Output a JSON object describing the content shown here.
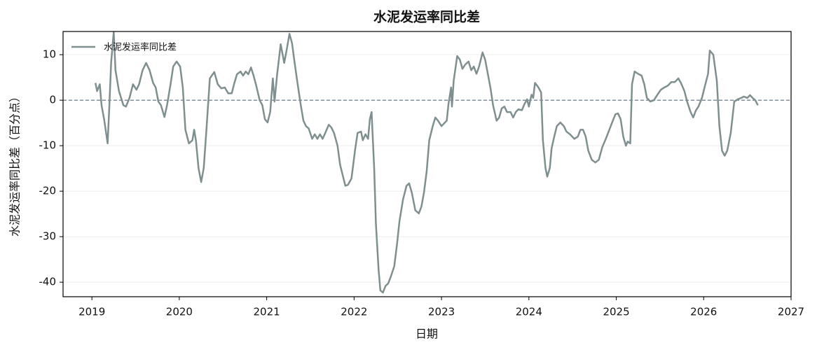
{
  "chart_data": {
    "type": "line",
    "title": "水泥发运率同比差",
    "x_label": "日期",
    "y_label": "水泥发运率同比差（百分点）",
    "x": [
      2019.04,
      2019.06,
      2019.09,
      2019.11,
      2019.14,
      2019.18,
      2019.2,
      2019.22,
      2019.25,
      2019.27,
      2019.31,
      2019.36,
      2019.39,
      2019.43,
      2019.47,
      2019.51,
      2019.54,
      2019.58,
      2019.62,
      2019.66,
      2019.7,
      2019.73,
      2019.76,
      2019.79,
      2019.83,
      2019.86,
      2019.9,
      2019.93,
      2019.97,
      2020.01,
      2020.04,
      2020.07,
      2020.11,
      2020.15,
      2020.17,
      2020.19,
      2020.22,
      2020.25,
      2020.28,
      2020.31,
      2020.35,
      2020.4,
      2020.44,
      2020.48,
      2020.52,
      2020.56,
      2020.6,
      2020.63,
      2020.66,
      2020.7,
      2020.73,
      2020.76,
      2020.79,
      2020.82,
      2020.85,
      2020.88,
      2020.92,
      2020.95,
      2020.98,
      2021.01,
      2021.04,
      2021.07,
      2021.09,
      2021.12,
      2021.16,
      2021.2,
      2021.23,
      2021.26,
      2021.29,
      2021.32,
      2021.36,
      2021.39,
      2021.42,
      2021.45,
      2021.48,
      2021.52,
      2021.55,
      2021.58,
      2021.61,
      2021.64,
      2021.67,
      2021.71,
      2021.74,
      2021.77,
      2021.81,
      2021.84,
      2021.87,
      2021.9,
      2021.93,
      2021.97,
      2021.99,
      2022.01,
      2022.04,
      2022.08,
      2022.1,
      2022.13,
      2022.16,
      2022.18,
      2022.2,
      2022.23,
      2022.25,
      2022.28,
      2022.3,
      2022.33,
      2022.36,
      2022.39,
      2022.42,
      2022.46,
      2022.49,
      2022.52,
      2022.56,
      2022.6,
      2022.63,
      2022.66,
      2022.7,
      2022.74,
      2022.77,
      2022.8,
      2022.83,
      2022.86,
      2022.9,
      2022.93,
      2022.96,
      2023.0,
      2023.03,
      2023.06,
      2023.08,
      2023.11,
      2023.12,
      2023.14,
      2023.18,
      2023.21,
      2023.24,
      2023.27,
      2023.31,
      2023.34,
      2023.37,
      2023.4,
      2023.43,
      2023.47,
      2023.5,
      2023.53,
      2023.56,
      2023.59,
      2023.63,
      2023.66,
      2023.69,
      2023.72,
      2023.75,
      2023.79,
      2023.82,
      2023.85,
      2023.88,
      2023.92,
      2023.95,
      2023.98,
      2024.0,
      2024.03,
      2024.05,
      2024.07,
      2024.11,
      2024.14,
      2024.16,
      2024.19,
      2024.21,
      2024.24,
      2024.26,
      2024.29,
      2024.32,
      2024.36,
      2024.4,
      2024.43,
      2024.47,
      2024.52,
      2024.56,
      2024.59,
      2024.62,
      2024.65,
      2024.68,
      2024.72,
      2024.76,
      2024.8,
      2024.84,
      2024.88,
      2024.92,
      2024.96,
      2024.99,
      2025.02,
      2025.05,
      2025.08,
      2025.11,
      2025.13,
      2025.16,
      2025.18,
      2025.21,
      2025.25,
      2025.29,
      2025.32,
      2025.35,
      2025.39,
      2025.43,
      2025.47,
      2025.51,
      2025.55,
      2025.59,
      2025.63,
      2025.67,
      2025.71,
      2025.74,
      2025.78,
      2025.81,
      2025.85,
      2025.88,
      2025.91,
      2025.94,
      2025.98,
      2026.01,
      2026.05,
      2026.07,
      2026.11,
      2026.15,
      2026.18,
      2026.21,
      2026.24,
      2026.27,
      2026.31,
      2026.35,
      2026.39,
      2026.43,
      2026.46,
      2026.5,
      2026.53,
      2026.56,
      2026.59,
      2026.62
    ],
    "series": [
      {
        "name": "水泥发运率同比差",
        "color": "#7f8f8f",
        "values": [
          3.8,
          2.0,
          3.5,
          -1.1,
          -4.2,
          -9.5,
          -1.1,
          8.2,
          15.0,
          6.6,
          2.0,
          -1.1,
          -1.4,
          0.5,
          3.5,
          2.3,
          3.5,
          6.6,
          8.2,
          6.6,
          3.8,
          2.8,
          -0.3,
          -1.1,
          -3.7,
          -1.1,
          3.5,
          7.4,
          8.5,
          7.4,
          2.8,
          -6.5,
          -9.5,
          -8.8,
          -6.5,
          -8.8,
          -14.9,
          -18.0,
          -14.9,
          -6.5,
          4.8,
          6.2,
          3.5,
          2.6,
          2.8,
          1.5,
          1.5,
          3.8,
          5.7,
          6.3,
          5.4,
          6.3,
          5.7,
          7.2,
          5.4,
          3.2,
          0.0,
          -1.1,
          -4.2,
          -4.9,
          -2.6,
          4.8,
          -0.3,
          5.8,
          12.3,
          8.2,
          11.2,
          14.6,
          12.5,
          8.2,
          2.8,
          -1.1,
          -4.5,
          -5.7,
          -6.2,
          -8.5,
          -7.5,
          -8.5,
          -7.5,
          -8.5,
          -7.2,
          -5.4,
          -6.0,
          -7.2,
          -10.0,
          -14.2,
          -16.5,
          -18.8,
          -18.6,
          -17.2,
          -14.2,
          -11.1,
          -7.2,
          -6.9,
          -8.8,
          -7.5,
          -8.5,
          -4.2,
          -2.6,
          -14.9,
          -27.2,
          -37.2,
          -41.8,
          -42.3,
          -40.8,
          -40.3,
          -38.8,
          -36.5,
          -31.8,
          -26.5,
          -21.8,
          -18.8,
          -18.3,
          -20.3,
          -24.2,
          -24.9,
          -23.4,
          -20.3,
          -15.7,
          -8.8,
          -5.7,
          -3.8,
          -4.5,
          -5.7,
          -5.1,
          -4.5,
          -0.8,
          2.8,
          -1.4,
          4.3,
          9.7,
          8.9,
          6.9,
          7.8,
          8.5,
          6.6,
          7.4,
          5.8,
          7.4,
          10.5,
          8.9,
          5.8,
          2.8,
          -1.1,
          -4.5,
          -3.8,
          -1.8,
          -1.4,
          -2.6,
          -2.6,
          -3.8,
          -2.6,
          -2.0,
          -2.2,
          -0.8,
          0.2,
          -1.4,
          1.2,
          0.5,
          3.8,
          2.8,
          1.7,
          -8.8,
          -14.9,
          -16.8,
          -14.9,
          -10.6,
          -8.0,
          -5.7,
          -4.9,
          -5.7,
          -6.9,
          -7.5,
          -8.5,
          -8.0,
          -6.5,
          -6.5,
          -8.0,
          -11.1,
          -13.1,
          -13.7,
          -13.1,
          -10.3,
          -8.5,
          -6.5,
          -4.5,
          -3.1,
          -2.9,
          -4.2,
          -8.0,
          -10.0,
          -9.1,
          -9.5,
          3.5,
          6.3,
          5.8,
          5.4,
          3.5,
          0.5,
          -0.3,
          0.0,
          1.2,
          2.3,
          2.8,
          3.2,
          4.0,
          4.0,
          4.8,
          3.8,
          2.0,
          -0.3,
          -2.6,
          -3.8,
          -2.3,
          -1.4,
          0.5,
          2.8,
          5.8,
          10.9,
          10.0,
          4.3,
          -5.7,
          -11.1,
          -12.2,
          -11.1,
          -7.2,
          -0.3,
          0.2,
          0.5,
          0.8,
          0.5,
          1.1,
          0.5,
          0.0,
          -1.1
        ]
      }
    ],
    "xlim": [
      2018.67,
      2027
    ],
    "xticks": [
      2019,
      2020,
      2021,
      2022,
      2023,
      2024,
      2025,
      2026,
      2027
    ],
    "ylim": [
      -43.2,
      15.1
    ],
    "yticks": [
      -40,
      -30,
      -20,
      -10,
      0,
      10
    ],
    "reference_line": 0,
    "reference_color": "#5f6b7a",
    "grid": true,
    "legend": "upper left"
  }
}
